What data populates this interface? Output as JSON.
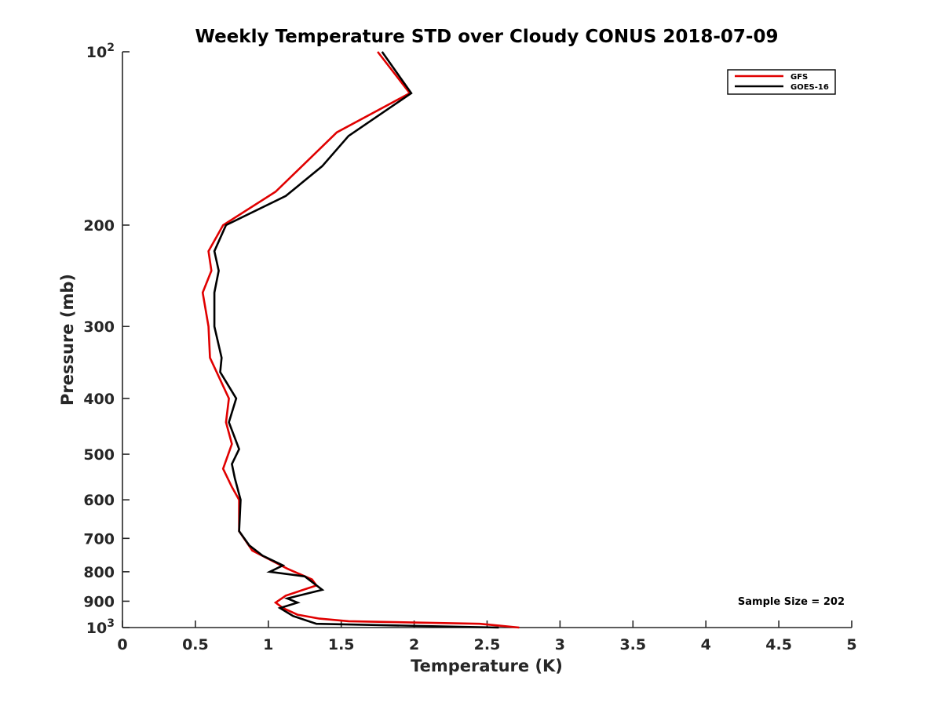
{
  "chart_data": {
    "type": "line",
    "title": "Weekly Temperature STD over Cloudy CONUS 2018-07-09",
    "xlabel": "Temperature (K)",
    "ylabel": "Pressure (mb)",
    "xlim": [
      0,
      5
    ],
    "ylim": [
      100,
      1000
    ],
    "y_scale": "log",
    "y_reversed": true,
    "grid": false,
    "legend_position": "top-right",
    "x_ticks": [
      0,
      0.5,
      1,
      1.5,
      2,
      2.5,
      3,
      3.5,
      4,
      4.5,
      5
    ],
    "x_tick_labels": [
      "0",
      "0.5",
      "1",
      "1.5",
      "2",
      "2.5",
      "3",
      "3.5",
      "4",
      "4.5",
      "5"
    ],
    "y_ticks": [
      {
        "value": 100,
        "base": "10",
        "exp": "2"
      },
      {
        "value": 200,
        "label": "200"
      },
      {
        "value": 300,
        "label": "300"
      },
      {
        "value": 400,
        "label": "400"
      },
      {
        "value": 500,
        "label": "500"
      },
      {
        "value": 600,
        "label": "600"
      },
      {
        "value": 700,
        "label": "700"
      },
      {
        "value": 800,
        "label": "800"
      },
      {
        "value": 900,
        "label": "900"
      },
      {
        "value": 1000,
        "base": "10",
        "exp": "3"
      }
    ],
    "series": [
      {
        "name": "GFS",
        "color": "#e00000",
        "points": [
          [
            1.75,
            100
          ],
          [
            1.97,
            118
          ],
          [
            1.47,
            138
          ],
          [
            1.05,
            175
          ],
          [
            0.69,
            200
          ],
          [
            0.59,
            222
          ],
          [
            0.61,
            240
          ],
          [
            0.55,
            262
          ],
          [
            0.59,
            300
          ],
          [
            0.6,
            340
          ],
          [
            0.73,
            400
          ],
          [
            0.71,
            440
          ],
          [
            0.75,
            480
          ],
          [
            0.69,
            530
          ],
          [
            0.75,
            570
          ],
          [
            0.8,
            600
          ],
          [
            0.8,
            680
          ],
          [
            0.89,
            735
          ],
          [
            1.13,
            790
          ],
          [
            1.3,
            825
          ],
          [
            1.33,
            845
          ],
          [
            1.12,
            880
          ],
          [
            1.05,
            905
          ],
          [
            1.1,
            925
          ],
          [
            1.2,
            950
          ],
          [
            1.35,
            965
          ],
          [
            1.55,
            975
          ],
          [
            2.45,
            985
          ],
          [
            2.72,
            1000
          ]
        ]
      },
      {
        "name": "GOES-16",
        "color": "#000000",
        "points": [
          [
            1.78,
            100
          ],
          [
            1.98,
            118
          ],
          [
            1.55,
            140
          ],
          [
            1.37,
            158
          ],
          [
            1.12,
            178
          ],
          [
            0.71,
            200
          ],
          [
            0.63,
            222
          ],
          [
            0.66,
            240
          ],
          [
            0.63,
            262
          ],
          [
            0.63,
            300
          ],
          [
            0.68,
            340
          ],
          [
            0.67,
            360
          ],
          [
            0.78,
            400
          ],
          [
            0.73,
            440
          ],
          [
            0.8,
            490
          ],
          [
            0.75,
            520
          ],
          [
            0.77,
            550
          ],
          [
            0.81,
            600
          ],
          [
            0.8,
            680
          ],
          [
            0.87,
            720
          ],
          [
            0.96,
            750
          ],
          [
            1.1,
            780
          ],
          [
            1.01,
            800
          ],
          [
            1.25,
            815
          ],
          [
            1.37,
            860
          ],
          [
            1.13,
            890
          ],
          [
            1.2,
            905
          ],
          [
            1.08,
            925
          ],
          [
            1.17,
            955
          ],
          [
            1.33,
            985
          ],
          [
            2.58,
            1000
          ]
        ]
      }
    ],
    "annotation": "Sample Size = 202"
  }
}
